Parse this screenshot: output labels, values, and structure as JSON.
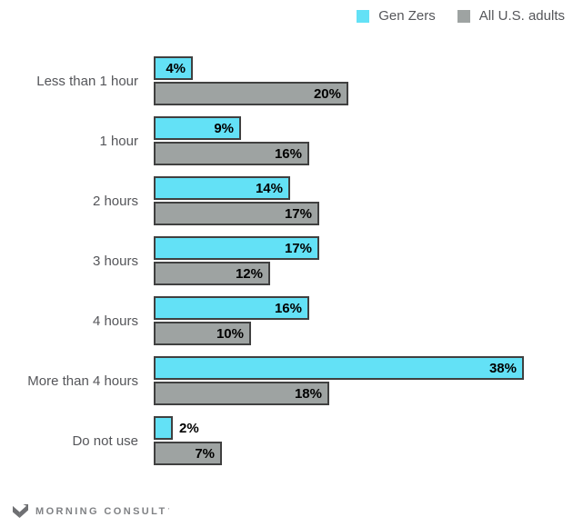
{
  "legend": {
    "items": [
      {
        "label": "Gen Zers",
        "color": "#63e1f6"
      },
      {
        "label": "All U.S. adults",
        "color": "#9ea3a2"
      }
    ]
  },
  "chart_data": {
    "type": "bar",
    "orientation": "horizontal",
    "title": "",
    "categories": [
      "Less than 1 hour",
      "1 hour",
      "2 hours",
      "3 hours",
      "4 hours",
      "More than 4 hours",
      "Do not use"
    ],
    "series": [
      {
        "name": "Gen Zers",
        "color": "#63e1f6",
        "values": [
          4,
          9,
          14,
          17,
          16,
          38,
          2
        ]
      },
      {
        "name": "All U.S. adults",
        "color": "#9ea3a2",
        "values": [
          20,
          16,
          17,
          12,
          10,
          18,
          7
        ]
      }
    ],
    "value_suffix": "%",
    "xlim": [
      0,
      44
    ],
    "grid": false,
    "bar_border_color": "#404040",
    "value_label_style": "bold-black-inside-end",
    "legend_position": "top-right"
  },
  "logo": {
    "text": "MORNING CONSULT",
    "tm": "′",
    "color": "#808285"
  }
}
